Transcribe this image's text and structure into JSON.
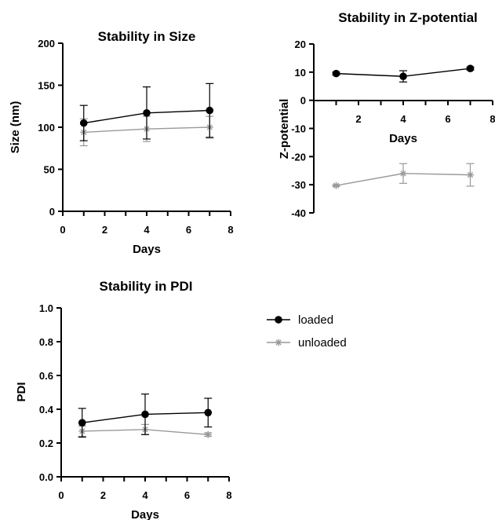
{
  "legend": {
    "entries": [
      {
        "name": "loaded",
        "color": "#000000",
        "marker": "circle"
      },
      {
        "name": "unloaded",
        "color": "#999999",
        "marker": "asterisk"
      }
    ],
    "placement": "right"
  },
  "chart_data": [
    {
      "type": "line",
      "title": "Stability in Size",
      "xlabel": "Days",
      "ylabel": "Size (nm)",
      "xlim": [
        0,
        8
      ],
      "ylim": [
        0,
        200
      ],
      "xticks": [
        "0",
        "2",
        "4",
        "6",
        "8"
      ],
      "yticks": [
        "0",
        "50",
        "100",
        "150",
        "200"
      ],
      "grid": false,
      "x": [
        1,
        4,
        7
      ],
      "series": [
        {
          "name": "loaded",
          "values": [
            105,
            117,
            120
          ],
          "err": [
            21,
            31,
            32
          ]
        },
        {
          "name": "unloaded",
          "values": [
            94,
            98,
            100
          ],
          "err": [
            16,
            15,
            13
          ]
        }
      ]
    },
    {
      "type": "line",
      "title": "Stability in Z-potential",
      "xlabel": "Days",
      "ylabel": "Z-potential",
      "xlim": [
        0,
        8
      ],
      "ylim": [
        -40,
        20
      ],
      "xticks": [
        "2",
        "4",
        "6",
        "8"
      ],
      "yticks": [
        "-40",
        "-30",
        "-20",
        "-10",
        "0",
        "10",
        "20"
      ],
      "grid": false,
      "x": [
        1,
        4,
        7
      ],
      "series": [
        {
          "name": "loaded",
          "values": [
            9.5,
            8.5,
            11.3
          ],
          "err": [
            0.5,
            2,
            0.5
          ]
        },
        {
          "name": "unloaded",
          "values": [
            -30.3,
            -26,
            -26.5
          ],
          "err": [
            0.3,
            3.5,
            4
          ]
        }
      ]
    },
    {
      "type": "line",
      "title": "Stability in PDI",
      "xlabel": "Days",
      "ylabel": "PDI",
      "xlim": [
        0,
        8
      ],
      "ylim": [
        0,
        1
      ],
      "xticks": [
        "0",
        "2",
        "4",
        "6",
        "8"
      ],
      "yticks": [
        "0.0",
        "0.2",
        "0.4",
        "0.6",
        "0.8",
        "1.0"
      ],
      "grid": false,
      "x": [
        1,
        4,
        7
      ],
      "series": [
        {
          "name": "loaded",
          "values": [
            0.32,
            0.37,
            0.38
          ],
          "err": [
            0.085,
            0.12,
            0.085
          ]
        },
        {
          "name": "unloaded",
          "values": [
            0.27,
            0.28,
            0.25
          ],
          "err": [
            0.03,
            0.03,
            0.01
          ]
        }
      ]
    }
  ]
}
